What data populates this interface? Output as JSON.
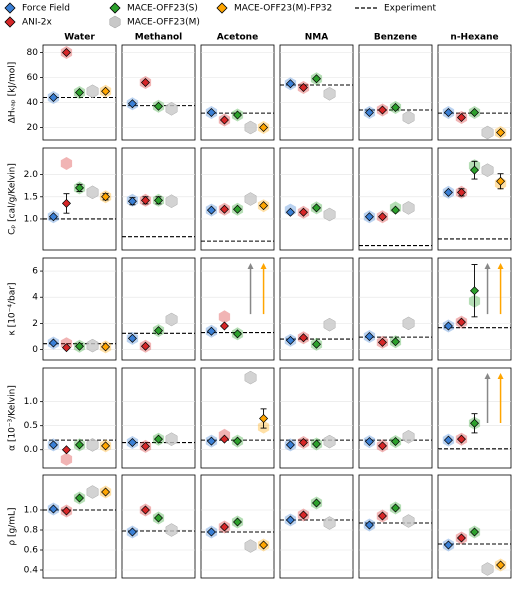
{
  "chart_data": {
    "type": "dot-grid",
    "legend": {
      "series": [
        {
          "name": "Force Field",
          "color": "#3a7fd5",
          "marker": "diamond"
        },
        {
          "name": "ANI-2x",
          "color": "#d62728",
          "marker": "diamond"
        },
        {
          "name": "MACE-OFF23(S)",
          "color": "#2ca02c",
          "marker": "diamond"
        },
        {
          "name": "MACE-OFF23(M)",
          "color": "#c8c8c8",
          "marker": "hexagon"
        },
        {
          "name": "MACE-OFF23(M)-FP32",
          "color": "#ffa500",
          "marker": "diamond"
        }
      ],
      "experiment": "Experiment"
    },
    "columns": [
      "Water",
      "Methanol",
      "Acetone",
      "NMA",
      "Benzene",
      "n-Hexane"
    ],
    "rows": [
      {
        "ylabel": "ΔHᵥₐₚ [kJ/mol]",
        "ylim": [
          10,
          86
        ],
        "yticks": [
          20,
          40,
          60,
          80
        ],
        "panels": [
          {
            "diamonds": [
              44,
              80,
              48,
              null,
              49
            ],
            "hexes": [
              44,
              80,
              48,
              49,
              49
            ],
            "exp": 44
          },
          {
            "diamonds": [
              39,
              56,
              37,
              null,
              null
            ],
            "hexes": [
              39,
              56,
              37,
              35,
              null
            ],
            "exp": 37.5
          },
          {
            "diamonds": [
              32,
              26,
              30,
              null,
              20
            ],
            "hexes": [
              32,
              26,
              30,
              20,
              20
            ],
            "exp": 31.5
          },
          {
            "diamonds": [
              55,
              52,
              59,
              null,
              null
            ],
            "hexes": [
              55,
              52,
              59,
              47,
              null
            ],
            "exp": 54
          },
          {
            "diamonds": [
              32,
              34,
              36,
              null,
              null
            ],
            "hexes": [
              32,
              34,
              36,
              28,
              null
            ],
            "exp": 34
          },
          {
            "diamonds": [
              32,
              28,
              32,
              null,
              16
            ],
            "hexes": [
              32,
              28,
              32,
              16,
              16
            ],
            "exp": 31.5
          }
        ]
      },
      {
        "ylabel": "Cₚ [cal/g/Kelvin]",
        "ylim": [
          0.3,
          2.6
        ],
        "yticks": [
          {
            "value": 1,
            "label": "1.0"
          },
          1.5,
          {
            "value": 2,
            "label": "2.0"
          }
        ],
        "panels": [
          {
            "diamonds": [
              1.05,
              1.35,
              1.7,
              null,
              1.5
            ],
            "hexes": [
              1.05,
              2.25,
              1.7,
              1.6,
              1.5
            ],
            "exp": 1.0,
            "errors": [
              null,
              0.22,
              0.08,
              null,
              0.07
            ]
          },
          {
            "diamonds": [
              1.4,
              1.42,
              1.42,
              null,
              null
            ],
            "hexes": [
              1.42,
              1.42,
              1.42,
              1.4,
              null
            ],
            "exp": 0.6,
            "errors": [
              0.08,
              0.08,
              0.08,
              null,
              null
            ]
          },
          {
            "diamonds": [
              1.2,
              1.22,
              1.22,
              null,
              1.3
            ],
            "hexes": [
              1.2,
              1.22,
              1.22,
              1.45,
              1.3
            ],
            "exp": 0.5
          },
          {
            "diamonds": [
              1.15,
              1.15,
              1.25,
              null,
              null
            ],
            "hexes": [
              1.2,
              1.15,
              1.25,
              1.1,
              null
            ],
            "exp": null
          },
          {
            "diamonds": [
              1.05,
              1.05,
              1.2,
              null,
              null
            ],
            "hexes": [
              1.05,
              1.05,
              1.25,
              1.25,
              null
            ],
            "exp": 0.4
          },
          {
            "diamonds": [
              1.6,
              1.6,
              2.1,
              null,
              1.85
            ],
            "hexes": [
              1.6,
              1.6,
              2.2,
              2.1,
              1.8
            ],
            "exp": 0.55,
            "errors": [
              null,
              0.08,
              0.2,
              null,
              0.17
            ]
          }
        ]
      },
      {
        "ylabel": "κ [10⁻⁴/bar]",
        "ylim": [
          -0.8,
          7
        ],
        "yticks": [
          0,
          2,
          4,
          6
        ],
        "panels": [
          {
            "diamonds": [
              0.5,
              0.15,
              0.25,
              null,
              0.2
            ],
            "hexes": [
              0.5,
              0.45,
              0.25,
              0.3,
              0.2
            ],
            "exp": 0.45
          },
          {
            "diamonds": [
              0.85,
              0.25,
              1.45,
              null,
              null
            ],
            "hexes": [
              0.85,
              0.25,
              1.45,
              2.3,
              null
            ],
            "exp": 1.24
          },
          {
            "diamonds": [
              1.4,
              1.8,
              1.2,
              null,
              null
            ],
            "hexes": [
              1.4,
              2.5,
              1.2,
              null,
              null
            ],
            "exp": 1.3,
            "offscale": [
              false,
              false,
              false,
              true,
              true
            ]
          },
          {
            "diamonds": [
              0.7,
              0.9,
              0.4,
              null,
              null
            ],
            "hexes": [
              0.7,
              0.9,
              0.4,
              1.9,
              null
            ],
            "exp": 0.8
          },
          {
            "diamonds": [
              1.0,
              0.55,
              0.6,
              null,
              null
            ],
            "hexes": [
              1.0,
              0.55,
              0.6,
              2.0,
              null
            ],
            "exp": 0.95
          },
          {
            "diamonds": [
              1.8,
              2.1,
              4.5,
              null,
              null
            ],
            "hexes": [
              1.8,
              2.1,
              3.7,
              null,
              null
            ],
            "exp": 1.67,
            "errors": [
              null,
              null,
              2.0,
              null,
              null
            ],
            "offscale": [
              false,
              false,
              false,
              true,
              true
            ]
          }
        ]
      },
      {
        "ylabel": "α [10⁻³/Kelvin]",
        "ylim": [
          -0.38,
          1.7
        ],
        "yticks": [
          {
            "value": 0,
            "label": "0.0"
          },
          0.5,
          {
            "value": 1,
            "label": "1.0"
          }
        ],
        "panels": [
          {
            "diamonds": [
              0.1,
              0.0,
              0.1,
              null,
              0.08
            ],
            "hexes": [
              0.1,
              -0.2,
              0.1,
              0.1,
              0.08
            ],
            "exp": 0.2
          },
          {
            "diamonds": [
              0.15,
              0.07,
              0.22,
              null,
              null
            ],
            "hexes": [
              0.15,
              0.07,
              0.22,
              0.22,
              null
            ],
            "exp": 0.15
          },
          {
            "diamonds": [
              0.18,
              0.22,
              0.18,
              null,
              0.65
            ],
            "hexes": [
              0.18,
              0.3,
              0.18,
              1.5,
              0.47
            ],
            "exp": 0.2,
            "errors": [
              null,
              null,
              null,
              null,
              0.2
            ]
          },
          {
            "diamonds": [
              0.1,
              0.15,
              0.12,
              null,
              null
            ],
            "hexes": [
              0.1,
              0.15,
              0.12,
              0.17,
              null
            ],
            "exp": 0.2
          },
          {
            "diamonds": [
              0.17,
              0.08,
              0.17,
              null,
              null
            ],
            "hexes": [
              0.17,
              0.08,
              0.17,
              0.27,
              null
            ],
            "exp": 0.2
          },
          {
            "diamonds": [
              0.2,
              0.22,
              0.55,
              null,
              null
            ],
            "hexes": [
              0.2,
              0.22,
              0.55,
              null,
              null
            ],
            "exp": 0.02,
            "errors": [
              null,
              null,
              0.2,
              null,
              null
            ],
            "offscale": [
              false,
              false,
              false,
              true,
              true
            ]
          }
        ]
      },
      {
        "ylabel": "ρ [g/mL]",
        "ylim": [
          0.32,
          1.35
        ],
        "yticks": [
          0.4,
          0.6,
          0.8,
          {
            "value": 1,
            "label": "1.0"
          }
        ],
        "panels": [
          {
            "diamonds": [
              1.01,
              0.99,
              1.12,
              null,
              1.18
            ],
            "hexes": [
              1.01,
              0.99,
              1.12,
              1.18,
              1.18
            ],
            "exp": 1.0
          },
          {
            "diamonds": [
              0.78,
              1.0,
              0.92,
              null,
              null
            ],
            "hexes": [
              0.78,
              1.0,
              0.92,
              0.8,
              null
            ],
            "exp": 0.79
          },
          {
            "diamonds": [
              0.78,
              0.83,
              0.88,
              null,
              0.65
            ],
            "hexes": [
              0.78,
              0.83,
              0.88,
              0.64,
              0.65
            ],
            "exp": 0.78
          },
          {
            "diamonds": [
              0.9,
              0.95,
              1.07,
              null,
              null
            ],
            "hexes": [
              0.9,
              0.95,
              1.07,
              0.87,
              null
            ],
            "exp": 0.9
          },
          {
            "diamonds": [
              0.85,
              0.94,
              1.02,
              null,
              null
            ],
            "hexes": [
              0.85,
              0.94,
              1.02,
              0.89,
              null
            ],
            "exp": 0.87
          },
          {
            "diamonds": [
              0.65,
              0.72,
              0.78,
              null,
              0.45
            ],
            "hexes": [
              0.65,
              0.72,
              0.78,
              0.41,
              0.45
            ],
            "exp": 0.66
          }
        ]
      }
    ]
  }
}
